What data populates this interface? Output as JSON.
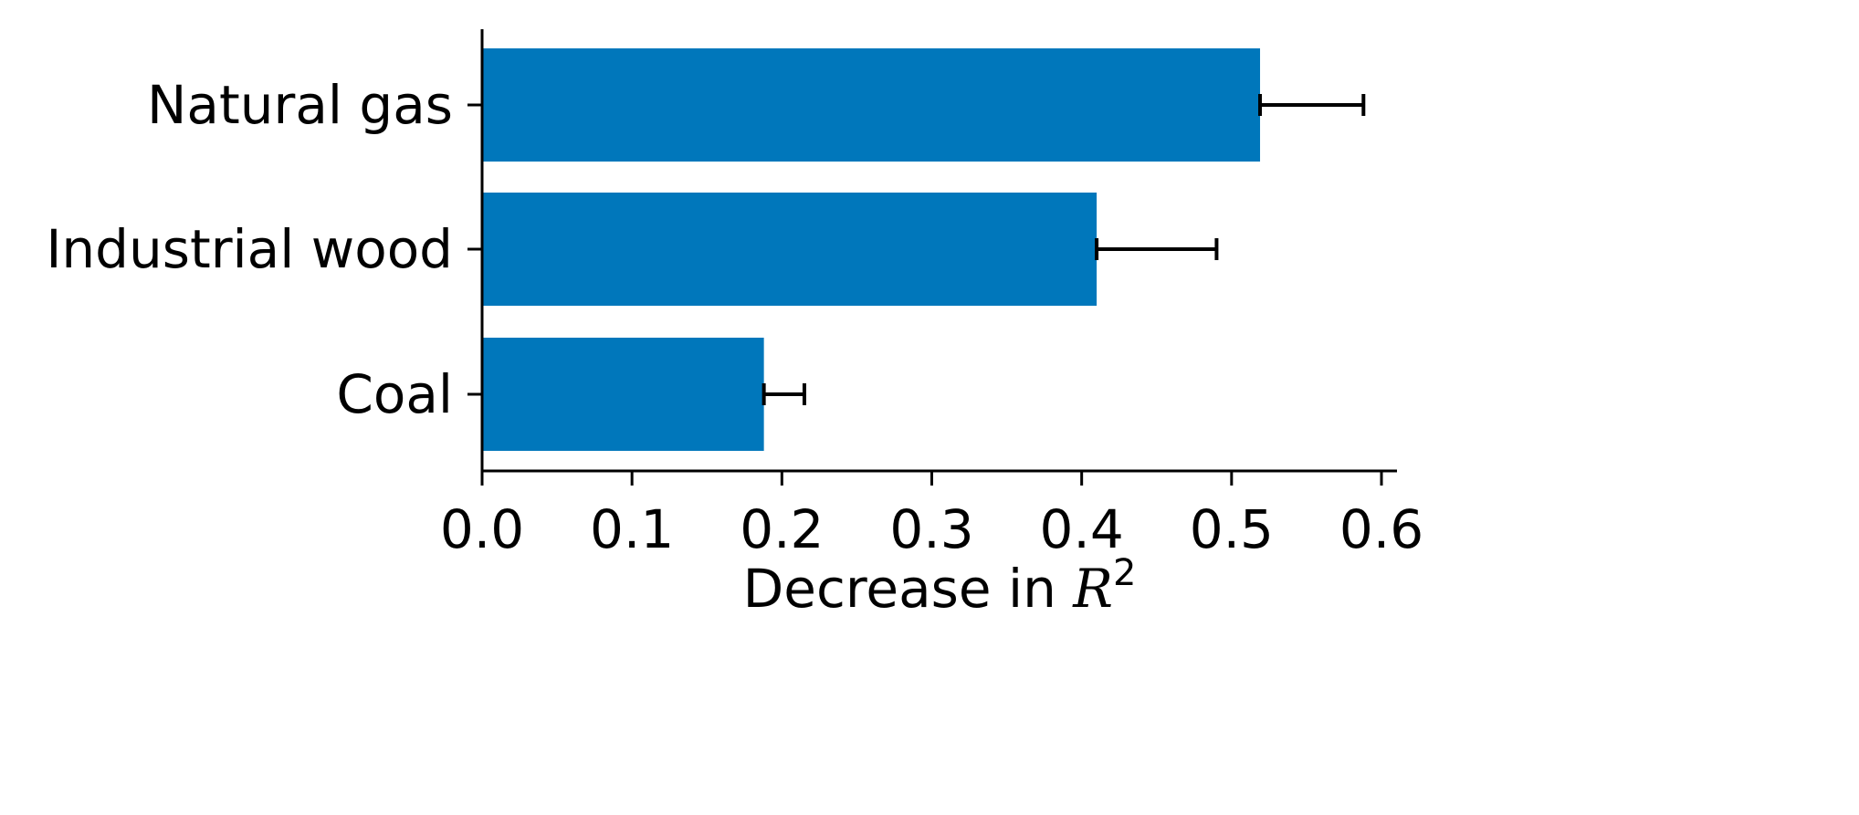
{
  "chart_data": {
    "type": "bar",
    "orientation": "horizontal",
    "categories": [
      "Natural gas",
      "Industrial wood",
      "Coal"
    ],
    "values": [
      0.519,
      0.41,
      0.188
    ],
    "error_upper": [
      0.069,
      0.08,
      0.027
    ],
    "xticks": [
      "0.0",
      "0.1",
      "0.2",
      "0.3",
      "0.4",
      "0.5",
      "0.6"
    ],
    "xlim": [
      0,
      0.62
    ],
    "xlabel_text": "Decrease in ",
    "xlabel_math": "R",
    "xlabel_sup": "2",
    "title": "",
    "grid": false,
    "legend": false,
    "bar_color": "#0077bb",
    "error_color": "#000000"
  }
}
